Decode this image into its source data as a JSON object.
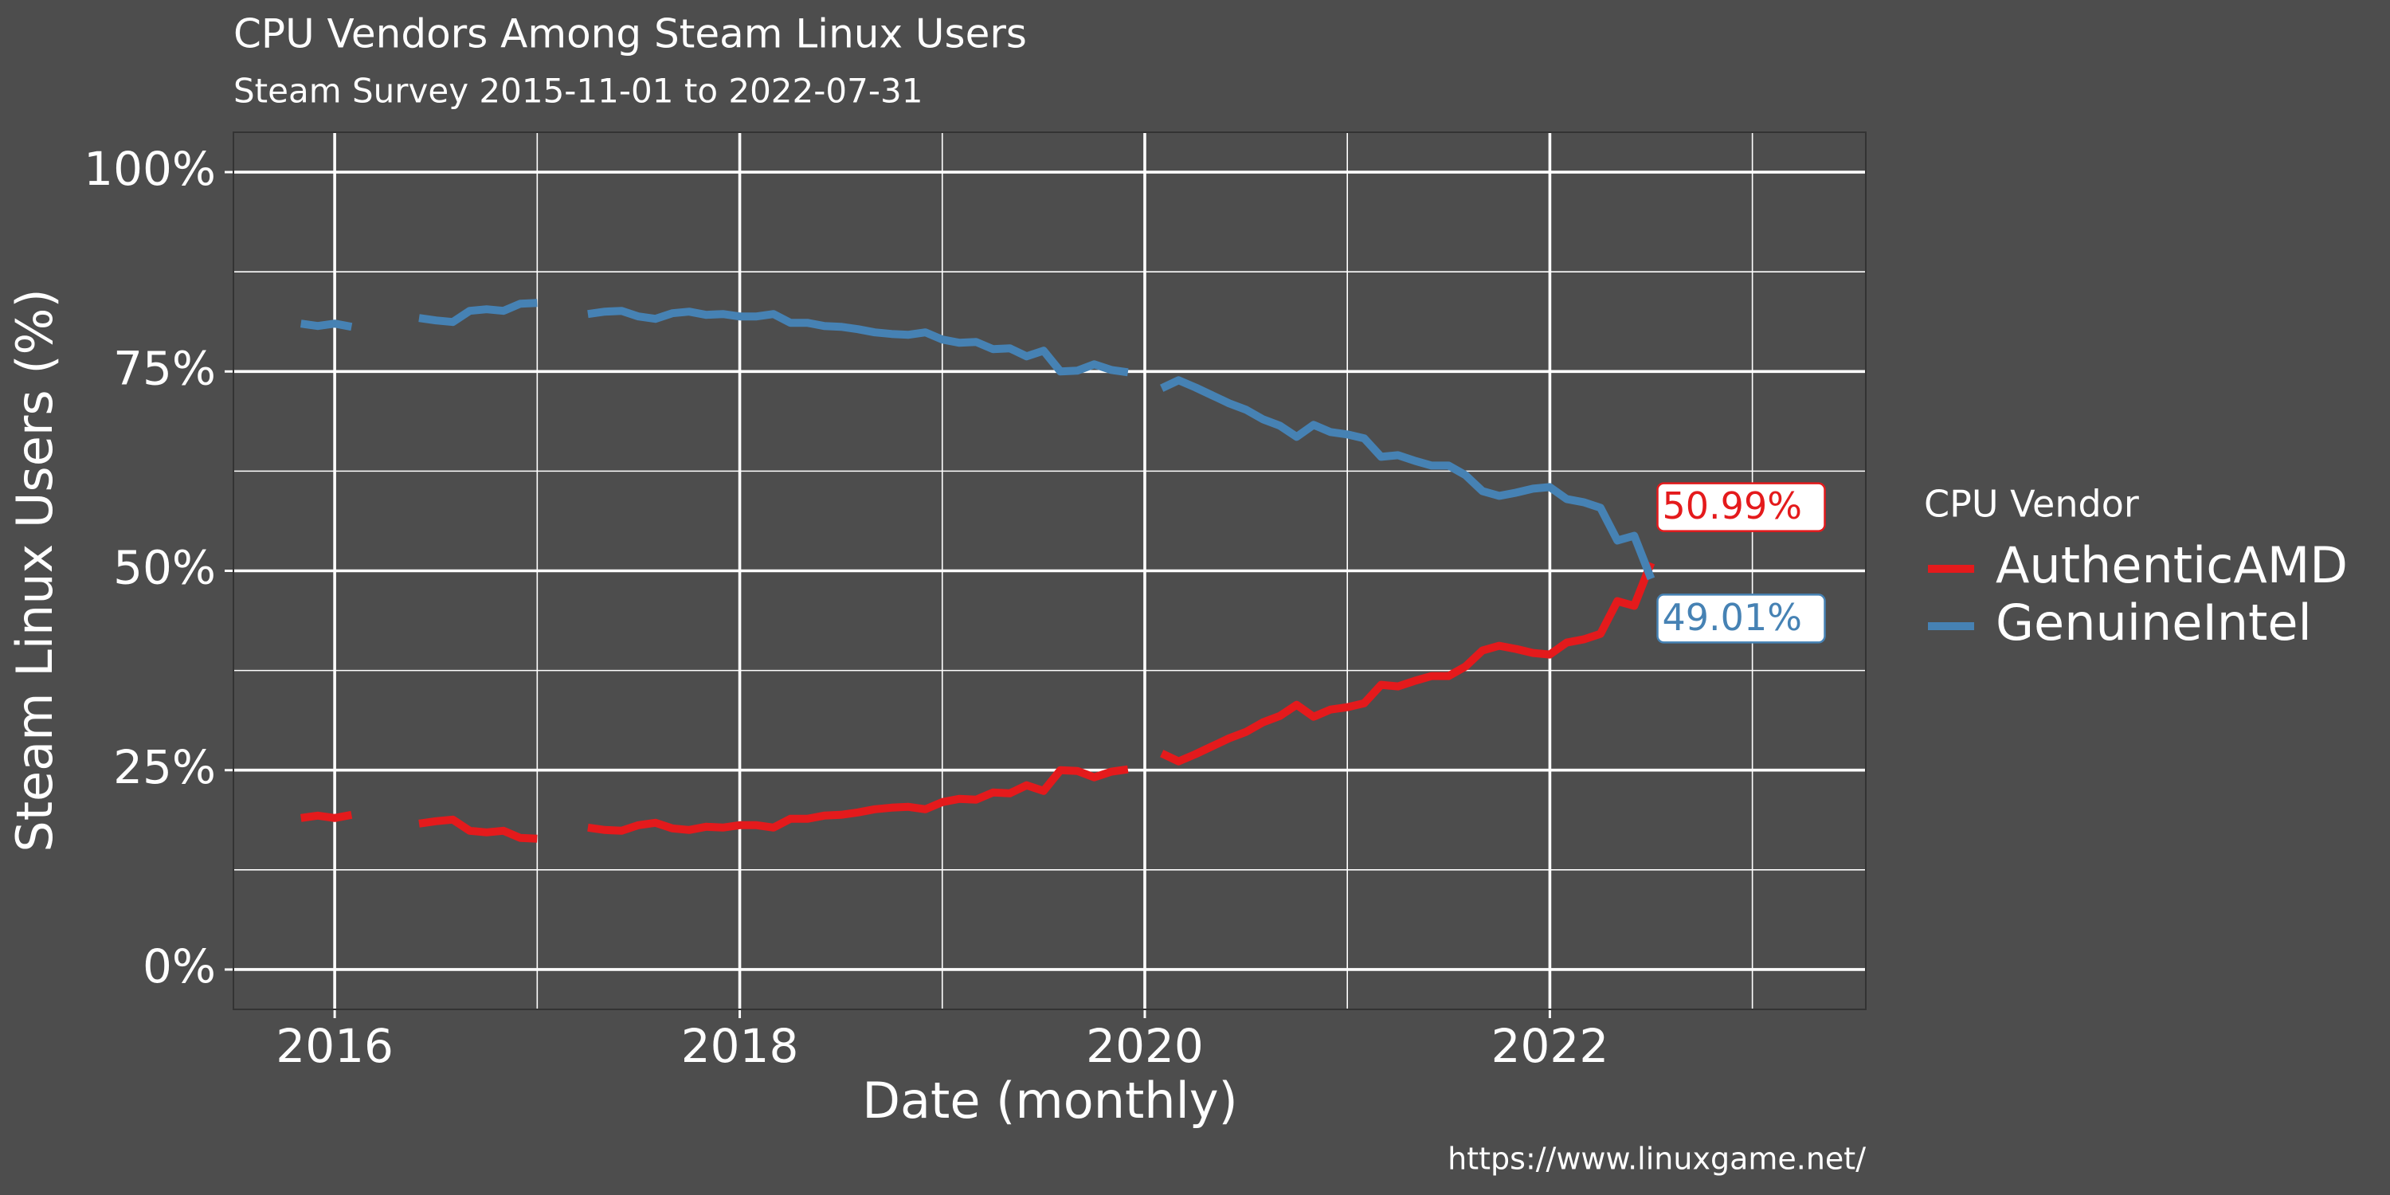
{
  "chart_data": {
    "type": "line",
    "title": "CPU Vendors Among Steam Linux Users",
    "subtitle": "Steam Survey 2015-11-01 to 2022-07-31",
    "x_label": "Date (monthly)",
    "y_label": "Steam Linux Users (%)",
    "caption": "https://www.linuxgame.net/",
    "legend_title": "CPU Vendor",
    "legend": "right",
    "grid": true,
    "xlim": [
      2015.5,
      2023.56
    ],
    "xticks": [
      2016,
      2018,
      2020,
      2022
    ],
    "xminor": [
      2017,
      2019,
      2021,
      2023
    ],
    "ylim": [
      -5,
      105
    ],
    "yticks": [
      {
        "value": 0,
        "label": "0%"
      },
      {
        "value": 25,
        "label": "25%"
      },
      {
        "value": 50,
        "label": "50%"
      },
      {
        "value": 75,
        "label": "75%"
      },
      {
        "value": 100,
        "label": "100%"
      }
    ],
    "yminor": [
      12.5,
      37.5,
      62.5,
      87.5
    ],
    "x": [
      "2015-11",
      "2015-12",
      "2016-01",
      "2016-02",
      "2016-03",
      "2016-04",
      "2016-05",
      "2016-06",
      "2016-07",
      "2016-08",
      "2016-09",
      "2016-10",
      "2016-11",
      "2016-12",
      "2017-01",
      "2017-02",
      "2017-03",
      "2017-04",
      "2017-05",
      "2017-06",
      "2017-07",
      "2017-08",
      "2017-09",
      "2017-10",
      "2017-11",
      "2017-12",
      "2018-01",
      "2018-02",
      "2018-03",
      "2018-04",
      "2018-05",
      "2018-06",
      "2018-07",
      "2018-08",
      "2018-09",
      "2018-10",
      "2018-11",
      "2018-12",
      "2019-01",
      "2019-02",
      "2019-03",
      "2019-04",
      "2019-05",
      "2019-06",
      "2019-07",
      "2019-08",
      "2019-09",
      "2019-10",
      "2019-11",
      "2019-12",
      "2020-01",
      "2020-02",
      "2020-03",
      "2020-04",
      "2020-05",
      "2020-06",
      "2020-07",
      "2020-08",
      "2020-09",
      "2020-10",
      "2020-11",
      "2020-12",
      "2021-01",
      "2021-02",
      "2021-03",
      "2021-04",
      "2021-05",
      "2021-06",
      "2021-07",
      "2021-08",
      "2021-09",
      "2021-10",
      "2021-11",
      "2021-12",
      "2022-01",
      "2022-02",
      "2022-03",
      "2022-04",
      "2022-05",
      "2022-06",
      "2022-07"
    ],
    "series": [
      {
        "name": "AuthenticAMD",
        "color": "#e41a1c",
        "values": [
          19.0,
          19.3,
          19.0,
          19.4,
          null,
          null,
          null,
          18.3,
          18.6,
          18.8,
          17.4,
          17.2,
          17.4,
          16.5,
          16.4,
          null,
          null,
          17.8,
          17.5,
          17.4,
          18.1,
          18.4,
          17.7,
          17.5,
          17.9,
          17.8,
          18.1,
          18.1,
          17.8,
          18.9,
          18.9,
          19.3,
          19.4,
          19.7,
          20.1,
          20.3,
          20.4,
          20.1,
          21.0,
          21.4,
          21.3,
          22.2,
          22.1,
          23.1,
          22.4,
          25.0,
          24.9,
          24.1,
          24.8,
          25.1,
          null,
          27.1,
          26.1,
          27.0,
          28.0,
          29.0,
          29.8,
          31.0,
          31.8,
          33.2,
          31.7,
          32.6,
          32.9,
          33.4,
          35.7,
          35.5,
          36.2,
          36.8,
          36.8,
          38.0,
          40.0,
          40.6,
          40.2,
          39.7,
          39.5,
          41.0,
          41.4,
          42.1,
          46.2,
          45.6,
          50.99
        ],
        "value_labels": [
          null,
          null,
          null,
          null,
          null,
          null,
          null,
          null,
          null,
          null,
          null,
          null,
          null,
          null,
          null,
          null,
          null,
          null,
          null,
          null,
          null,
          null,
          null,
          null,
          null,
          null,
          null,
          null,
          null,
          null,
          null,
          null,
          null,
          null,
          null,
          null,
          null,
          null,
          null,
          null,
          null,
          null,
          null,
          null,
          null,
          null,
          null,
          null,
          null,
          null,
          null,
          null,
          null,
          null,
          null,
          null,
          null,
          null,
          null,
          null,
          null,
          null,
          null,
          null,
          null,
          null,
          null,
          null,
          null,
          null,
          null,
          null,
          null,
          null,
          null,
          null,
          null,
          null,
          null,
          null,
          "50.99%"
        ]
      },
      {
        "name": "GenuineIntel",
        "color": "#4682b4",
        "values": [
          81.0,
          80.7,
          81.0,
          80.6,
          null,
          null,
          null,
          81.7,
          81.4,
          81.2,
          82.6,
          82.8,
          82.6,
          83.5,
          83.6,
          null,
          null,
          82.2,
          82.5,
          82.6,
          81.9,
          81.6,
          82.3,
          82.5,
          82.1,
          82.2,
          81.9,
          81.9,
          82.2,
          81.1,
          81.1,
          80.7,
          80.6,
          80.3,
          79.9,
          79.7,
          79.6,
          79.9,
          79.0,
          78.6,
          78.7,
          77.8,
          77.9,
          76.9,
          77.6,
          75.0,
          75.1,
          75.9,
          75.2,
          74.9,
          null,
          72.9,
          73.9,
          73.0,
          72.0,
          71.0,
          70.2,
          69.0,
          68.2,
          66.8,
          68.3,
          67.4,
          67.1,
          66.6,
          64.3,
          64.5,
          63.8,
          63.2,
          63.2,
          62.0,
          60.0,
          59.4,
          59.8,
          60.3,
          60.5,
          59.0,
          58.6,
          57.9,
          53.8,
          54.4,
          49.01
        ],
        "value_labels": [
          null,
          null,
          null,
          null,
          null,
          null,
          null,
          null,
          null,
          null,
          null,
          null,
          null,
          null,
          null,
          null,
          null,
          null,
          null,
          null,
          null,
          null,
          null,
          null,
          null,
          null,
          null,
          null,
          null,
          null,
          null,
          null,
          null,
          null,
          null,
          null,
          null,
          null,
          null,
          null,
          null,
          null,
          null,
          null,
          null,
          null,
          null,
          null,
          null,
          null,
          null,
          null,
          null,
          null,
          null,
          null,
          null,
          null,
          null,
          null,
          null,
          null,
          null,
          null,
          null,
          null,
          null,
          null,
          null,
          null,
          null,
          null,
          null,
          null,
          null,
          null,
          null,
          null,
          null,
          null,
          "49.01%"
        ]
      }
    ]
  }
}
